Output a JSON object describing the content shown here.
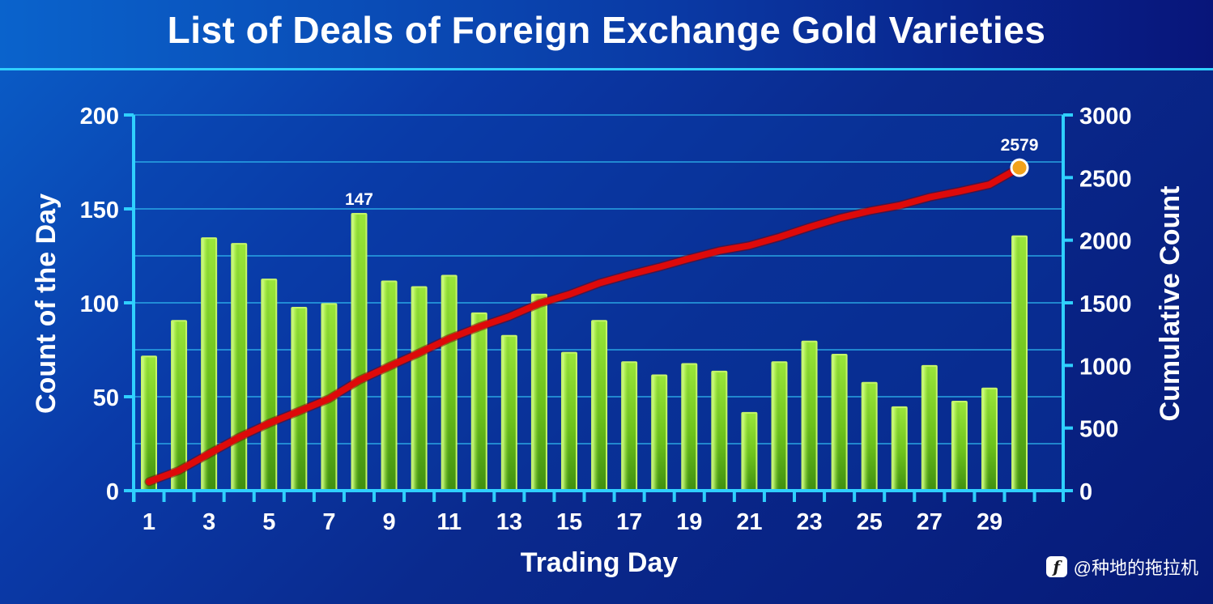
{
  "title": "List of Deals of Foreign Exchange Gold Varieties",
  "watermark": {
    "text": "@种地的拖拉机",
    "icon": "toutiao-logo-icon"
  },
  "colors": {
    "bar_fill": "#7ed321",
    "bar_highlight": "#c6f56a",
    "line": "#dd0a0a",
    "marker": "#f2a21a",
    "axis": "#2fd0ff",
    "grid": "#2fb8f0"
  },
  "chart_data": {
    "type": "bar",
    "title": "List of Deals of Foreign Exchange Gold Varieties",
    "xlabel": "Trading Day",
    "ylabel": "Count of the Day",
    "y2label": "Cumulative Count",
    "x": [
      1,
      2,
      3,
      4,
      5,
      6,
      7,
      8,
      9,
      10,
      11,
      12,
      13,
      14,
      15,
      16,
      17,
      18,
      19,
      20,
      21,
      22,
      23,
      24,
      25,
      26,
      27,
      28,
      29,
      30
    ],
    "x_tick_labels": [
      "1",
      "3",
      "5",
      "7",
      "9",
      "11",
      "13",
      "15",
      "17",
      "19",
      "21",
      "23",
      "25",
      "27",
      "29"
    ],
    "ylim": [
      0,
      200
    ],
    "y_ticks": [
      0,
      50,
      100,
      150,
      200
    ],
    "y2lim": [
      0,
      3000
    ],
    "y2_ticks": [
      0,
      500,
      1000,
      1500,
      2000,
      2500,
      3000
    ],
    "grid": true,
    "series": [
      {
        "type": "bar",
        "axis": "left",
        "values": [
          71,
          90,
          134,
          131,
          112,
          97,
          99,
          147,
          111,
          108,
          114,
          94,
          82,
          104,
          73,
          90,
          68,
          61,
          67,
          63,
          41,
          68,
          79,
          72,
          57,
          44,
          66,
          47,
          54,
          135
        ]
      },
      {
        "type": "line",
        "axis": "right",
        "values": [
          71,
          161,
          295,
          426,
          538,
          635,
          734,
          881,
          992,
          1100,
          1214,
          1308,
          1390,
          1494,
          1567,
          1657,
          1725,
          1786,
          1853,
          1916,
          1957,
          2025,
          2104,
          2176,
          2233,
          2277,
          2343,
          2390,
          2444,
          2579
        ]
      }
    ],
    "annotations": [
      {
        "series": 0,
        "x": 8,
        "text": "147"
      },
      {
        "series": 1,
        "x": 30,
        "text": "2579"
      }
    ]
  }
}
